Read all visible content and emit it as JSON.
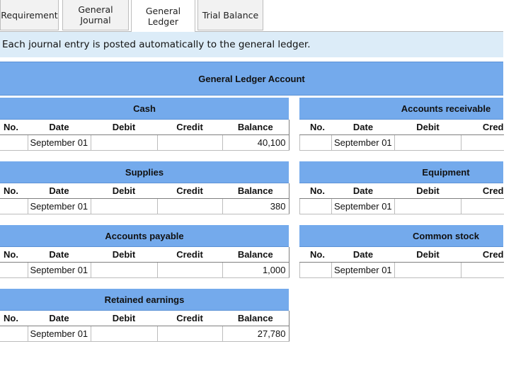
{
  "tabs": [
    {
      "label": "Requirement"
    },
    {
      "label": "General\nJournal"
    },
    {
      "label": "General\nLedger"
    },
    {
      "label": "Trial Balance"
    }
  ],
  "banner": "Each journal entry is posted automatically to the general ledger.",
  "ledger_title": "General Ledger Account",
  "columns": {
    "no": "No.",
    "date": "Date",
    "debit": "Debit",
    "credit": "Credit",
    "balance": "Balance",
    "cred_clipped": "Cred"
  },
  "accounts": {
    "cash": {
      "title": "Cash",
      "date": "September 01",
      "balance": "40,100"
    },
    "accounts_receivable": {
      "title": "Accounts receivable",
      "date": "September 01"
    },
    "supplies": {
      "title": "Supplies",
      "date": "September 01",
      "balance": "380"
    },
    "equipment": {
      "title": "Equipment",
      "date": "September 01"
    },
    "accounts_payable": {
      "title": "Accounts payable",
      "date": "September 01",
      "balance": "1,000"
    },
    "common_stock": {
      "title": "Common stock",
      "date": "September 01"
    },
    "retained_earnings": {
      "title": "Retained earnings",
      "date": "September 01",
      "balance": "27,780"
    }
  },
  "colors": {
    "header_blue": "#74aaec",
    "banner_blue": "#dcecf8",
    "tab_gray": "#f2f2f2"
  }
}
